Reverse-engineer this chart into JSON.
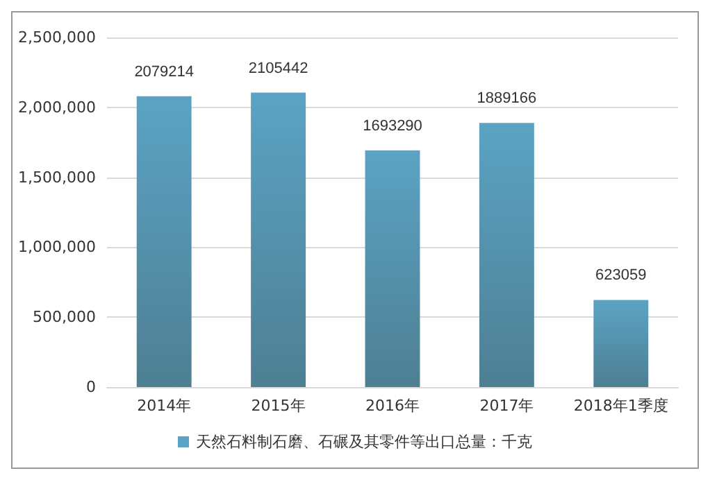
{
  "chart_data": {
    "type": "bar",
    "categories": [
      "2014年",
      "2015年",
      "2016年",
      "2017年",
      "2018年1季度"
    ],
    "series": [
      {
        "name": "天然石料制石磨、石碾及其零件等出口总量：千克",
        "color": "#5ba3c4",
        "values": [
          2079214,
          2105442,
          1693290,
          1889166,
          623059
        ]
      }
    ],
    "ylim": [
      0,
      2500000
    ],
    "yticks": [
      {
        "value": 0,
        "label": "0"
      },
      {
        "value": 500000,
        "label": "500,000"
      },
      {
        "value": 1000000,
        "label": "1,000,000"
      },
      {
        "value": 1500000,
        "label": "1,500,000"
      },
      {
        "value": 2000000,
        "label": "2,000,000"
      },
      {
        "value": 2500000,
        "label": "2,500,000"
      }
    ],
    "grid": "y",
    "legend": "bottom",
    "data_labels": true
  }
}
